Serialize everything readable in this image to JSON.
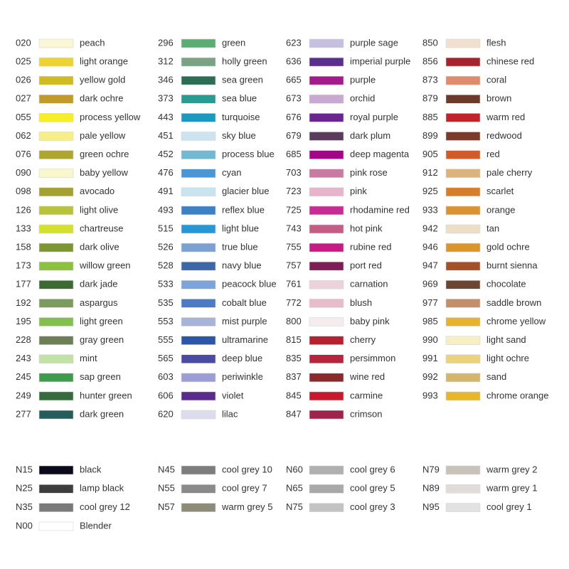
{
  "sections": [
    {
      "columns": [
        [
          {
            "code": "020",
            "name": "peach",
            "color": "#fbf6d6"
          },
          {
            "code": "025",
            "name": "light orange",
            "color": "#ecd233"
          },
          {
            "code": "026",
            "name": "yellow gold",
            "color": "#d0bb25"
          },
          {
            "code": "027",
            "name": "dark ochre",
            "color": "#c09a2d"
          },
          {
            "code": "055",
            "name": "process yellow",
            "color": "#f7ee2a"
          },
          {
            "code": "062",
            "name": "pale yellow",
            "color": "#f8ee87"
          },
          {
            "code": "076",
            "name": "green ochre",
            "color": "#ada534"
          },
          {
            "code": "090",
            "name": "baby yellow",
            "color": "#f9f7cc"
          },
          {
            "code": "098",
            "name": "avocado",
            "color": "#a4a032"
          },
          {
            "code": "126",
            "name": "light olive",
            "color": "#b7c43b"
          },
          {
            "code": "133",
            "name": "chartreuse",
            "color": "#d4e12c"
          },
          {
            "code": "158",
            "name": "dark olive",
            "color": "#7c9732"
          },
          {
            "code": "173",
            "name": "willow green",
            "color": "#8cc13f"
          },
          {
            "code": "177",
            "name": "dark jade",
            "color": "#3c6b31"
          },
          {
            "code": "192",
            "name": "aspargus",
            "color": "#7b9c5c"
          },
          {
            "code": "195",
            "name": "light green",
            "color": "#81c04a"
          },
          {
            "code": "228",
            "name": "gray green",
            "color": "#6d8055"
          },
          {
            "code": "243",
            "name": "mint",
            "color": "#c1e1a5"
          },
          {
            "code": "245",
            "name": "sap green",
            "color": "#3f9b4d"
          },
          {
            "code": "249",
            "name": "hunter green",
            "color": "#356b3d"
          },
          {
            "code": "277",
            "name": "dark green",
            "color": "#265c5a"
          }
        ],
        [
          {
            "code": "296",
            "name": "green",
            "color": "#5cad72"
          },
          {
            "code": "312",
            "name": "holly green",
            "color": "#7aa383"
          },
          {
            "code": "346",
            "name": "sea green",
            "color": "#2c6e55"
          },
          {
            "code": "373",
            "name": "sea blue",
            "color": "#2a9a93"
          },
          {
            "code": "443",
            "name": "turquoise",
            "color": "#1a9ac0"
          },
          {
            "code": "451",
            "name": "sky blue",
            "color": "#cde3ef"
          },
          {
            "code": "452",
            "name": "process blue",
            "color": "#74b8d0"
          },
          {
            "code": "476",
            "name": "cyan",
            "color": "#4a97d4"
          },
          {
            "code": "491",
            "name": "glacier blue",
            "color": "#c9e4ef"
          },
          {
            "code": "493",
            "name": "reflex blue",
            "color": "#3c80c6"
          },
          {
            "code": "515",
            "name": "light blue",
            "color": "#2698d6"
          },
          {
            "code": "526",
            "name": "true blue",
            "color": "#7da0d2"
          },
          {
            "code": "528",
            "name": "navy blue",
            "color": "#3d67a6"
          },
          {
            "code": "533",
            "name": "peacock blue",
            "color": "#7da3db"
          },
          {
            "code": "535",
            "name": "cobalt blue",
            "color": "#4c7bc5"
          },
          {
            "code": "553",
            "name": "mist purple",
            "color": "#a8b3da"
          },
          {
            "code": "555",
            "name": "ultramarine",
            "color": "#2a57a7"
          },
          {
            "code": "565",
            "name": "deep blue",
            "color": "#4b4aa5"
          },
          {
            "code": "603",
            "name": "periwinkle",
            "color": "#9b9ed6"
          },
          {
            "code": "606",
            "name": "violet",
            "color": "#5a2a8e"
          },
          {
            "code": "620",
            "name": "lilac",
            "color": "#dcdcee"
          }
        ],
        [
          {
            "code": "623",
            "name": "purple sage",
            "color": "#c7bfe0"
          },
          {
            "code": "636",
            "name": "imperial purple",
            "color": "#5b2f8d"
          },
          {
            "code": "665",
            "name": "purple",
            "color": "#a31c8c"
          },
          {
            "code": "673",
            "name": "orchid",
            "color": "#c9a8d2"
          },
          {
            "code": "676",
            "name": "royal purple",
            "color": "#6b2590"
          },
          {
            "code": "679",
            "name": "dark plum",
            "color": "#5a3d5c"
          },
          {
            "code": "685",
            "name": "deep magenta",
            "color": "#a10785"
          },
          {
            "code": "703",
            "name": "pink rose",
            "color": "#c97aa3"
          },
          {
            "code": "723",
            "name": "pink",
            "color": "#e6b5cc"
          },
          {
            "code": "725",
            "name": "rhodamine red",
            "color": "#c62c92"
          },
          {
            "code": "743",
            "name": "hot pink",
            "color": "#c45d85"
          },
          {
            "code": "755",
            "name": "rubine red",
            "color": "#c71a85"
          },
          {
            "code": "757",
            "name": "port red",
            "color": "#7d1f54"
          },
          {
            "code": "761",
            "name": "carnation",
            "color": "#edd3d9"
          },
          {
            "code": "772",
            "name": "blush",
            "color": "#e9bccc"
          },
          {
            "code": "800",
            "name": "baby pink",
            "color": "#f6ecee"
          },
          {
            "code": "815",
            "name": "cherry",
            "color": "#b7202f"
          },
          {
            "code": "835",
            "name": "persimmon",
            "color": "#b6253c"
          },
          {
            "code": "837",
            "name": "wine red",
            "color": "#8a2a2d"
          },
          {
            "code": "845",
            "name": "carmine",
            "color": "#c8182d"
          },
          {
            "code": "847",
            "name": "crimson",
            "color": "#a0234d"
          }
        ],
        [
          {
            "code": "850",
            "name": "flesh",
            "color": "#f1e0d0"
          },
          {
            "code": "856",
            "name": "chinese red",
            "color": "#a8232c"
          },
          {
            "code": "873",
            "name": "coral",
            "color": "#e08b6b"
          },
          {
            "code": "879",
            "name": "brown",
            "color": "#6b3a2a"
          },
          {
            "code": "885",
            "name": "warm red",
            "color": "#c1232c"
          },
          {
            "code": "899",
            "name": "redwood",
            "color": "#7b3b2a"
          },
          {
            "code": "905",
            "name": "red",
            "color": "#d05a2a"
          },
          {
            "code": "912",
            "name": "pale cherry",
            "color": "#ddb37d"
          },
          {
            "code": "925",
            "name": "scarlet",
            "color": "#d67d2c"
          },
          {
            "code": "933",
            "name": "orange",
            "color": "#db9230"
          },
          {
            "code": "942",
            "name": "tan",
            "color": "#ebdfc8"
          },
          {
            "code": "946",
            "name": "gold ochre",
            "color": "#db962a"
          },
          {
            "code": "947",
            "name": "burnt sienna",
            "color": "#a45127"
          },
          {
            "code": "969",
            "name": "chocolate",
            "color": "#6e4530"
          },
          {
            "code": "977",
            "name": "saddle brown",
            "color": "#c58e6a"
          },
          {
            "code": "985",
            "name": "chrome yellow",
            "color": "#e8b22d"
          },
          {
            "code": "990",
            "name": "light sand",
            "color": "#f7efc3"
          },
          {
            "code": "991",
            "name": "light ochre",
            "color": "#ecd27a"
          },
          {
            "code": "992",
            "name": "sand",
            "color": "#d4b56c"
          },
          {
            "code": "993",
            "name": "chrome orange",
            "color": "#e6b72a"
          }
        ]
      ]
    },
    {
      "columns": [
        [
          {
            "code": "N15",
            "name": "black",
            "color": "#0a0a1a"
          },
          {
            "code": "N25",
            "name": "lamp black",
            "color": "#3e3e3e"
          },
          {
            "code": "N35",
            "name": "cool grey 12",
            "color": "#7a7a7a"
          },
          {
            "code": "N00",
            "name": "Blender",
            "color": "#ffffff"
          }
        ],
        [
          {
            "code": "N45",
            "name": "cool grey 10",
            "color": "#7d7d7d"
          },
          {
            "code": "N55",
            "name": "cool grey 7",
            "color": "#8a8a8a"
          },
          {
            "code": "N57",
            "name": "warm grey 5",
            "color": "#8d8c7a"
          }
        ],
        [
          {
            "code": "N60",
            "name": "cool grey 6",
            "color": "#b0b0b0"
          },
          {
            "code": "N65",
            "name": "cool grey 5",
            "color": "#a9a9a9"
          },
          {
            "code": "N75",
            "name": "cool grey 3",
            "color": "#c3c3c3"
          }
        ],
        [
          {
            "code": "N79",
            "name": "warm grey 2",
            "color": "#c8c2b8"
          },
          {
            "code": "N89",
            "name": "warm grey 1",
            "color": "#e0ddd8"
          },
          {
            "code": "N95",
            "name": "cool grey 1",
            "color": "#e2e2e2"
          }
        ]
      ]
    }
  ]
}
